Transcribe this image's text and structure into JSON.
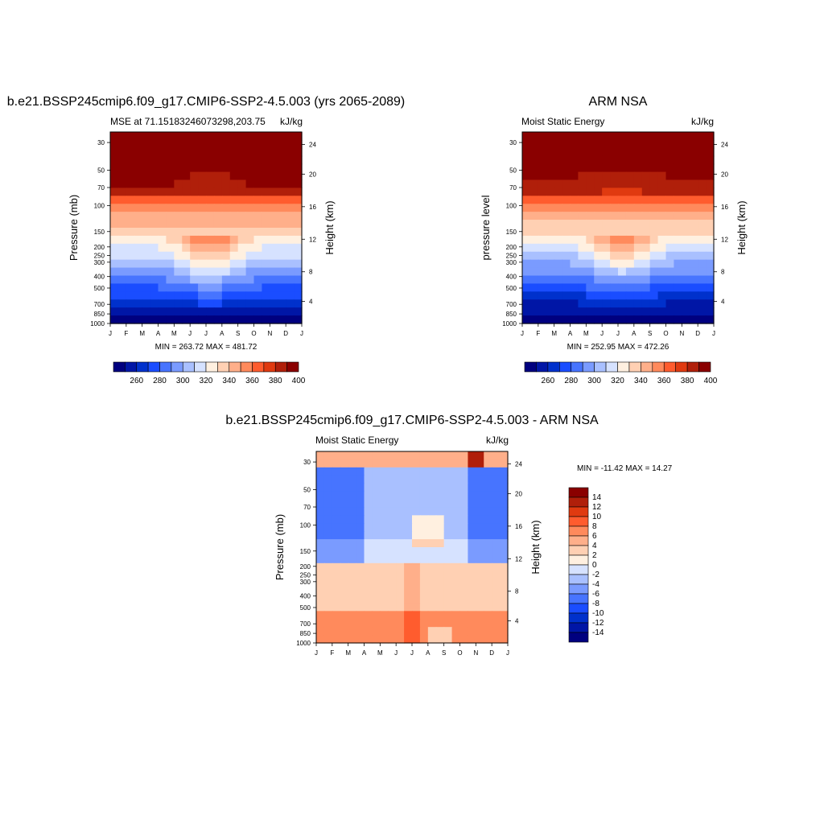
{
  "chart_data": [
    {
      "type": "heatmap",
      "title": "b.e21.BSSP245cmip6.f09_g17.CMIP6-SSP2-4.5.003 (yrs 2065-2089)",
      "left_subtitle": "MSE at 71.15183246073298,203.75",
      "right_subtitle": "kJ/kg",
      "ylabel": "Pressure (mb)",
      "y2label": "Height (km)",
      "x_ticks": [
        "J",
        "F",
        "M",
        "A",
        "M",
        "J",
        "J",
        "A",
        "S",
        "O",
        "N",
        "D",
        "J"
      ],
      "y_ticks": [
        "30",
        "50",
        "70",
        "100",
        "150",
        "200",
        "250",
        "300",
        "400",
        "500",
        "700",
        "850",
        "1000"
      ],
      "y2_ticks": [
        "24",
        "20",
        "16",
        "12",
        "8",
        "4"
      ],
      "minmax": "MIN = 263.72 MAX = 481.72",
      "colorbar_labels": [
        "260",
        "280",
        "300",
        "320",
        "340",
        "360",
        "380",
        "400"
      ],
      "profile_hint": "mse"
    },
    {
      "type": "heatmap",
      "title": "ARM NSA",
      "left_subtitle": "Moist Static Energy",
      "right_subtitle": "kJ/kg",
      "ylabel": "pressure level",
      "y2label": "Height (km)",
      "x_ticks": [
        "J",
        "F",
        "M",
        "A",
        "M",
        "J",
        "J",
        "A",
        "S",
        "O",
        "N",
        "D",
        "J"
      ],
      "y_ticks": [
        "30",
        "50",
        "70",
        "100",
        "150",
        "200",
        "250",
        "300",
        "400",
        "500",
        "700",
        "850",
        "1000"
      ],
      "y2_ticks": [
        "24",
        "20",
        "16",
        "12",
        "8",
        "4"
      ],
      "minmax": "MIN = 252.95 MAX = 472.26",
      "colorbar_labels": [
        "260",
        "280",
        "300",
        "320",
        "340",
        "360",
        "380",
        "400"
      ],
      "profile_hint": "mse"
    },
    {
      "type": "heatmap",
      "title": "b.e21.BSSP245cmip6.f09_g17.CMIP6-SSP2-4.5.003 - ARM NSA",
      "left_subtitle": "Moist Static Energy",
      "right_subtitle": "kJ/kg",
      "ylabel": "Pressure (mb)",
      "y2label": "Height (km)",
      "x_ticks": [
        "J",
        "F",
        "M",
        "A",
        "M",
        "J",
        "J",
        "A",
        "S",
        "O",
        "N",
        "D",
        "J"
      ],
      "y_ticks": [
        "30",
        "50",
        "70",
        "100",
        "150",
        "200",
        "250",
        "300",
        "400",
        "500",
        "700",
        "850",
        "1000"
      ],
      "y2_ticks": [
        "24",
        "20",
        "16",
        "12",
        "8",
        "4"
      ],
      "minmax": "MIN = -11.42 MAX =  14.27",
      "colorbar_labels": [
        "14",
        "12",
        "10",
        "8",
        "6",
        "4",
        "2",
        "0",
        "-2",
        "-4",
        "-6",
        "-8",
        "-10",
        "-12",
        "-14"
      ],
      "profile_hint": "diff"
    }
  ],
  "palette": [
    "#00007f",
    "#0016a6",
    "#0031cc",
    "#1a4dff",
    "#4774ff",
    "#7a9bff",
    "#a9c0ff",
    "#d6e2ff",
    "#fff0e0",
    "#ffd0b3",
    "#ffaf8a",
    "#ff8a5c",
    "#ff5c2e",
    "#e03a10",
    "#b01f0a",
    "#8a0000"
  ]
}
